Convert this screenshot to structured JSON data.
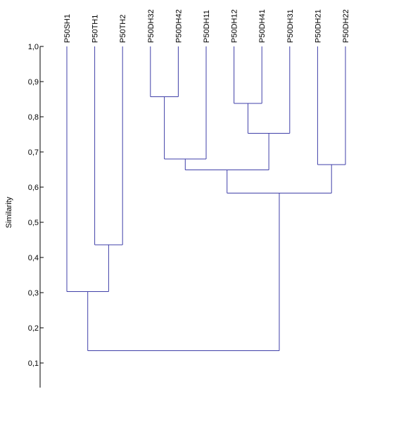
{
  "chart_data": {
    "type": "dendrogram",
    "ylabel": "Similarity",
    "ylim": [
      0.03,
      1.0
    ],
    "yticks": [
      1.0,
      0.9,
      0.8,
      0.7,
      0.6,
      0.5,
      0.4,
      0.3,
      0.2,
      0.1
    ],
    "ytick_labels": [
      "1,0",
      "0,9",
      "0,8",
      "0,7",
      "0,6",
      "0,5",
      "0,4",
      "0,3",
      "0,2",
      "0,1"
    ],
    "leaves": [
      "P50SH1",
      "P50TH1",
      "P50TH2",
      "P50DH32",
      "P50DH42",
      "P50DH11",
      "P50DH12",
      "P50DH41",
      "P50DH31",
      "P50DH21",
      "P50DH22"
    ],
    "merges": [
      {
        "left": "P50DH32",
        "right": "P50DH42",
        "similarity": 0.857
      },
      {
        "left": "P50DH12",
        "right": "P50DH41",
        "similarity": 0.838
      },
      {
        "left": "P50DH21",
        "right": "P50DH22",
        "similarity": 0.664
      },
      {
        "left": "P50DH12+P50DH41",
        "right": "P50DH31",
        "similarity": 0.753
      },
      {
        "left": "P50DH32+P50DH42",
        "right": "P50DH11",
        "similarity": 0.68
      },
      {
        "left": "P50DH32+P50DH42+P50DH11",
        "right": "P50DH12+P50DH41+P50DH31",
        "similarity": 0.649
      },
      {
        "left": "P50DH-group",
        "right": "P50DH21+P50DH22",
        "similarity": 0.583
      },
      {
        "left": "P50TH1",
        "right": "P50TH2",
        "similarity": 0.436
      },
      {
        "left": "P50SH1",
        "right": "P50TH1+P50TH2",
        "similarity": 0.303
      },
      {
        "left": "P50SH1+P50TH",
        "right": "P50DH-all",
        "similarity": 0.135
      }
    ],
    "colors": {
      "tree": "#3f3fa8",
      "axis": "#000000"
    }
  }
}
